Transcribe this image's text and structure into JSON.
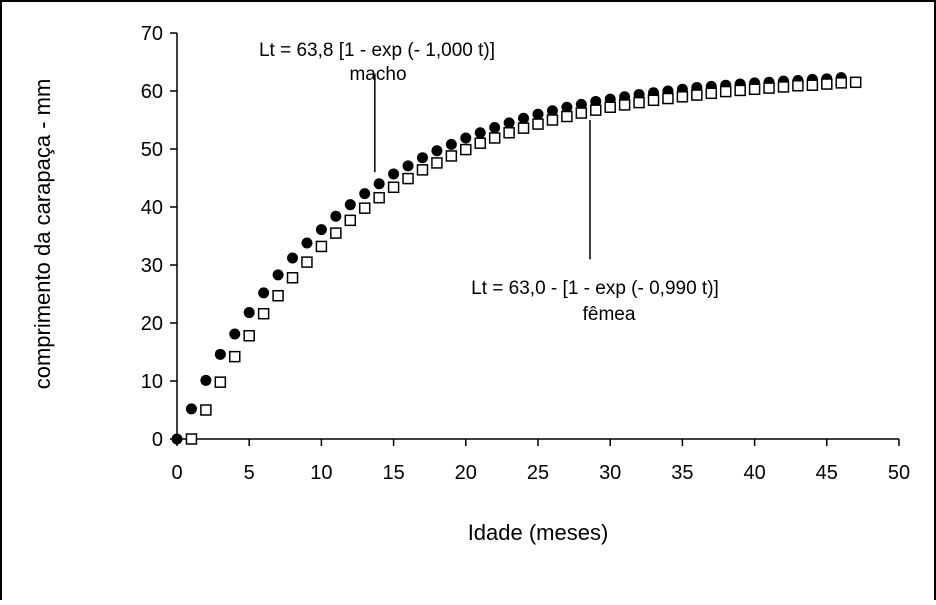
{
  "chart_data": {
    "type": "scatter",
    "title": "",
    "xlabel": "Idade (meses)",
    "ylabel": "comprimento da carapaça - mm",
    "xlim": [
      0,
      50
    ],
    "ylim": [
      0,
      70
    ],
    "xticks": [
      "0",
      "5",
      "10",
      "15",
      "20",
      "25",
      "30",
      "35",
      "40",
      "45",
      "50"
    ],
    "yticks": [
      "0",
      "10",
      "20",
      "30",
      "40",
      "50",
      "60",
      "70"
    ],
    "grid": false,
    "legend": "none",
    "series": [
      {
        "name": "macho",
        "marker": "filled-circle",
        "color": "#000000",
        "x": [
          0,
          1,
          2,
          3,
          4,
          5,
          6,
          7,
          8,
          9,
          10,
          11,
          12,
          13,
          14,
          15,
          16,
          17,
          18,
          19,
          20,
          21,
          22,
          23,
          24,
          25,
          26,
          27,
          28,
          29,
          30,
          31,
          32,
          33,
          34,
          35,
          36,
          37,
          38,
          39,
          40,
          41,
          42,
          43,
          44,
          45,
          46
        ],
        "values": [
          0,
          5.2,
          10.1,
          14.6,
          18.1,
          21.8,
          25.2,
          28.3,
          31.2,
          33.8,
          36.1,
          38.4,
          40.4,
          42.3,
          44.0,
          45.7,
          47.1,
          48.5,
          49.7,
          50.8,
          51.9,
          52.8,
          53.7,
          54.5,
          55.3,
          56.0,
          56.6,
          57.2,
          57.7,
          58.2,
          58.6,
          59.0,
          59.4,
          59.7,
          60.0,
          60.3,
          60.6,
          60.8,
          61.0,
          61.2,
          61.4,
          61.5,
          61.7,
          61.8,
          62.0,
          62.1,
          62.3
        ]
      },
      {
        "name": "fêmea",
        "marker": "open-square",
        "color": "#000000",
        "x": [
          1,
          2,
          3,
          4,
          5,
          6,
          7,
          8,
          9,
          10,
          11,
          12,
          13,
          14,
          15,
          16,
          17,
          18,
          19,
          20,
          21,
          22,
          23,
          24,
          25,
          26,
          27,
          28,
          29,
          30,
          31,
          32,
          33,
          34,
          35,
          36,
          37,
          38,
          39,
          40,
          41,
          42,
          43,
          44,
          45,
          46,
          47
        ],
        "values": [
          0,
          5.0,
          9.8,
          14.2,
          17.8,
          21.6,
          24.7,
          27.8,
          30.5,
          33.2,
          35.5,
          37.7,
          39.8,
          41.6,
          43.4,
          44.9,
          46.4,
          47.6,
          48.8,
          49.9,
          51.0,
          51.9,
          52.8,
          53.6,
          54.3,
          55.0,
          55.6,
          56.2,
          56.7,
          57.2,
          57.6,
          58.0,
          58.4,
          58.7,
          59.0,
          59.3,
          59.6,
          59.9,
          60.1,
          60.3,
          60.5,
          60.7,
          60.9,
          61.0,
          61.2,
          61.4,
          61.5
        ]
      }
    ],
    "annotations": [
      {
        "text": "Lt = 63,8 [1 - exp (- 1,000 t)]",
        "label": "macho",
        "pointer_x": 13.7,
        "pointer_y": [
          46,
          63
        ]
      },
      {
        "text": "Lt = 63,0 - [1 - exp (- 0,990 t)]",
        "label": "fêmea",
        "pointer_x": 28.6,
        "pointer_y": [
          31,
          55
        ]
      }
    ]
  }
}
